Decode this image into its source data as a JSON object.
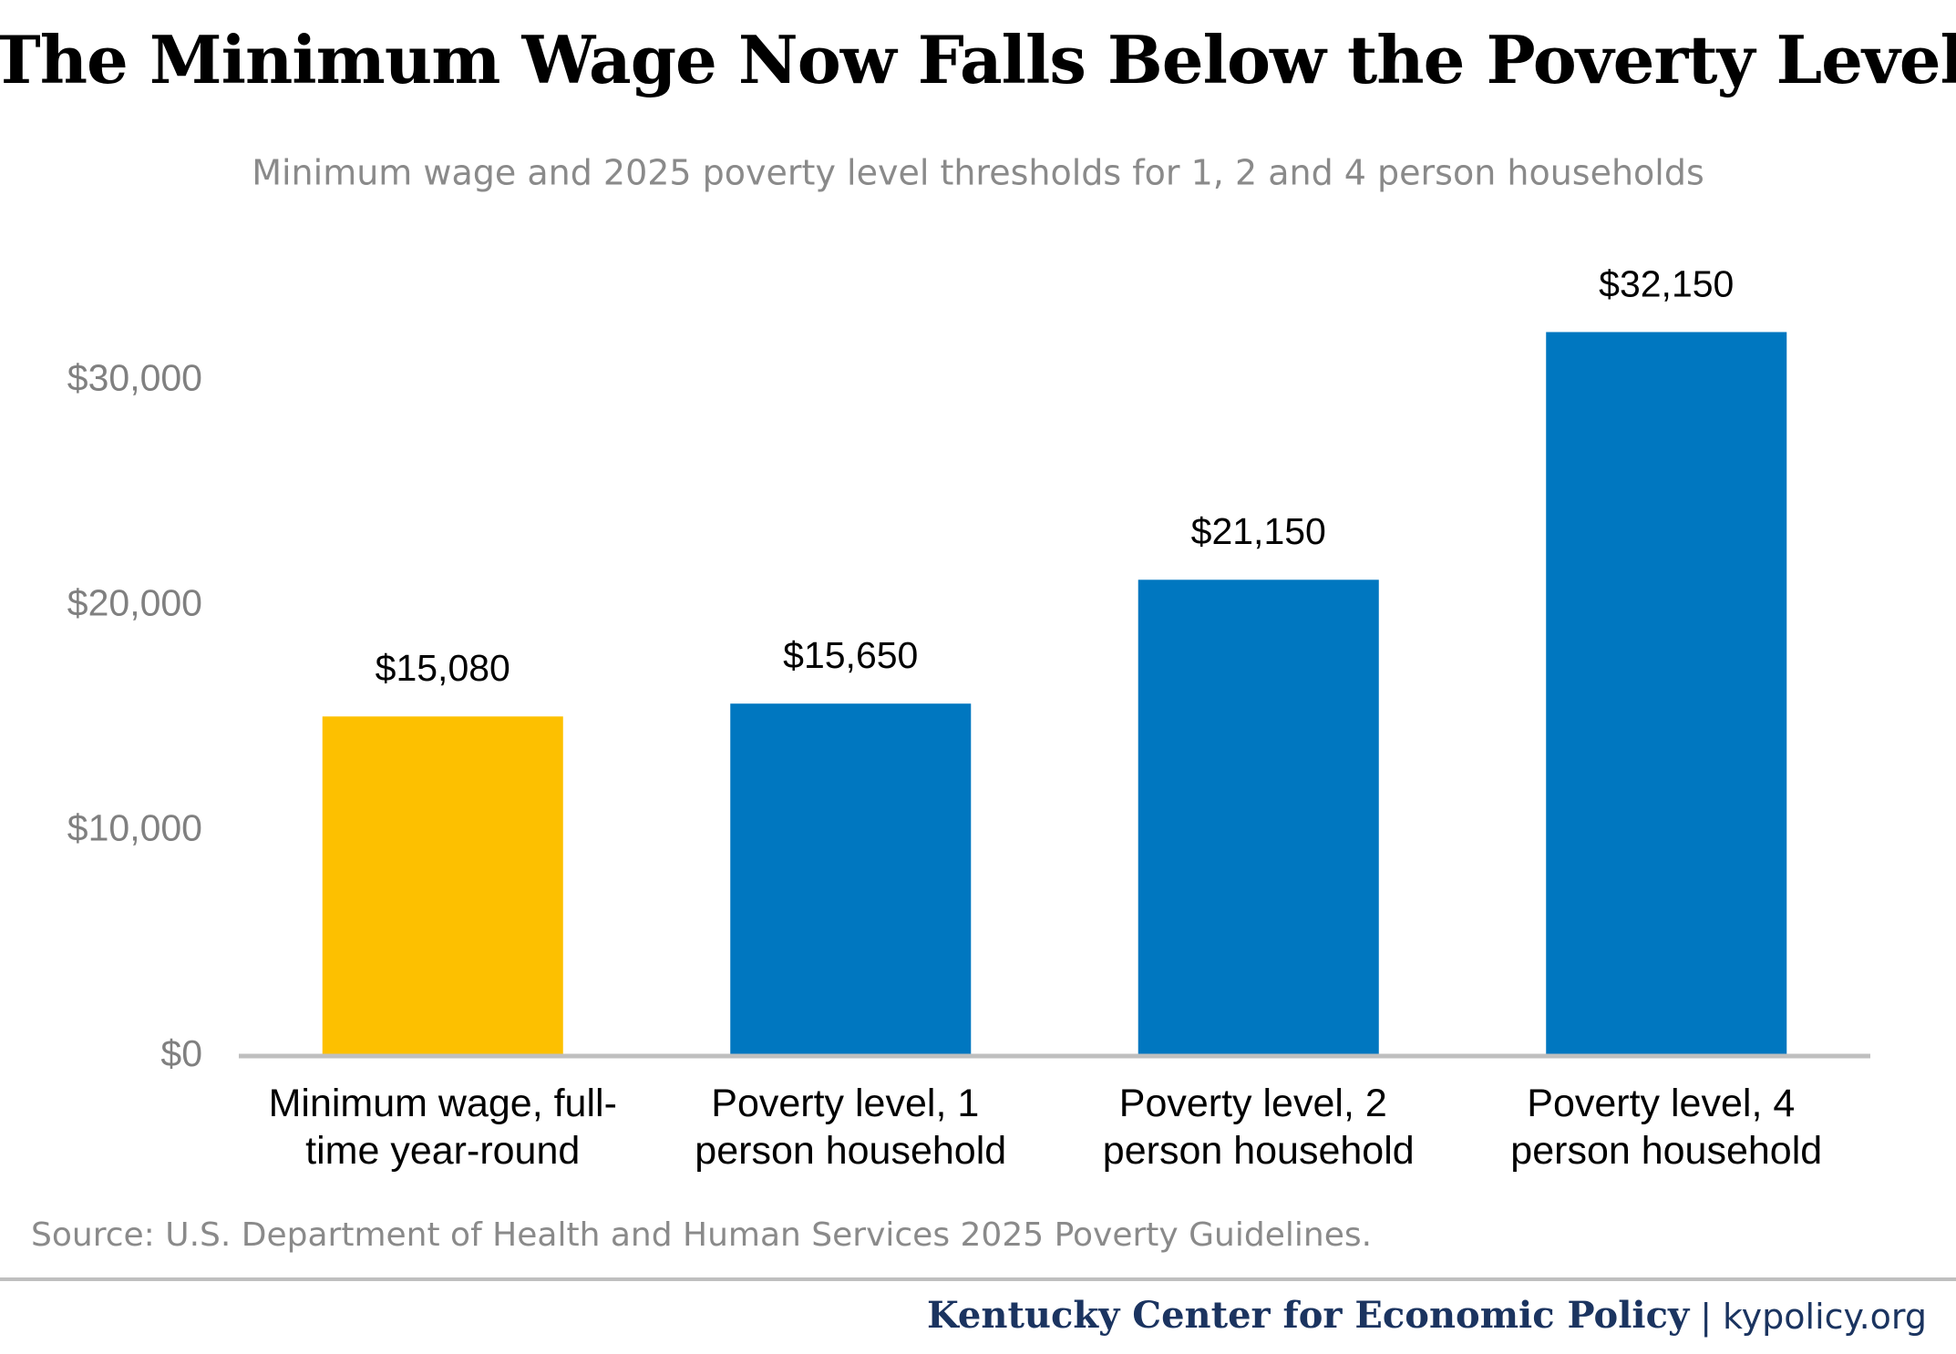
{
  "chart_data": {
    "type": "bar",
    "title": "The Minimum Wage Now Falls Below the Poverty Level",
    "subtitle": "Minimum wage and 2025 poverty level thresholds for 1, 2 and 4 person households",
    "categories": [
      "Minimum wage, full-time year-round",
      "Poverty level, 1 person household",
      "Poverty level, 2 person household",
      "Poverty level, 4 person household"
    ],
    "values": [
      15080,
      15650,
      21150,
      32150
    ],
    "value_labels": [
      "$15,080",
      "$15,650",
      "$21,150",
      "$32,150"
    ],
    "colors": [
      "#fdc000",
      "#0077c0",
      "#0077c0",
      "#0077c0"
    ],
    "ylim": [
      0,
      35000
    ],
    "yticks": [
      {
        "value": 0,
        "label": "$0"
      },
      {
        "value": 10000,
        "label": "$10,000"
      },
      {
        "value": 20000,
        "label": "$20,000"
      },
      {
        "value": 30000,
        "label": "$30,000"
      }
    ],
    "grid": false,
    "source": "Source: U.S. Department of Health and Human Services 2025 Poverty Guidelines."
  },
  "footer": {
    "organization": "Kentucky Center for Economic Policy",
    "separator": "|",
    "website": "kypolicy.org"
  }
}
